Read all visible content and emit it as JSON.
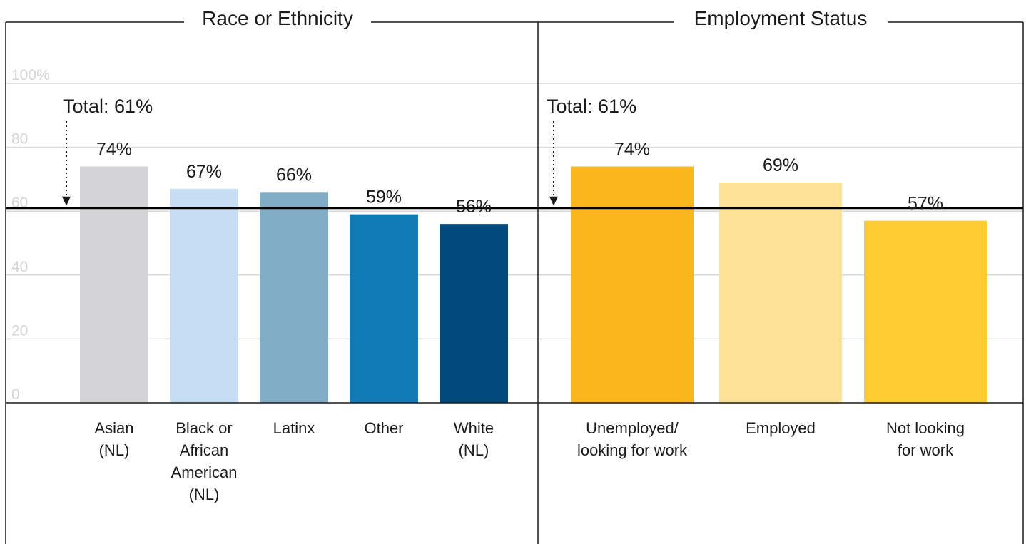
{
  "chart_data": [
    {
      "type": "bar",
      "title": "Race or Ethnicity",
      "categories": [
        [
          "Asian",
          "(NL)"
        ],
        [
          "Black or",
          "African",
          "American",
          "(NL)"
        ],
        [
          "Latinx"
        ],
        [
          "Other"
        ],
        [
          "White",
          "(NL)"
        ]
      ],
      "values": [
        74,
        67,
        66,
        59,
        56
      ],
      "value_labels": [
        "74%",
        "67%",
        "66%",
        "59%",
        "56%"
      ],
      "colors": [
        "#d4d4d6",
        "#c6ddf3",
        "#80acc5",
        "#117bb8",
        "#024a7c"
      ],
      "reference_line": {
        "value": 61,
        "label": "Total: 61%"
      },
      "ylim": [
        0,
        100
      ],
      "yticks": [
        "0",
        "20",
        "40",
        "60",
        "80",
        "100%"
      ],
      "ytick_values": [
        0,
        20,
        40,
        60,
        80,
        100
      ],
      "grid": true
    },
    {
      "type": "bar",
      "title": "Employment Status",
      "categories": [
        [
          "Unemployed/",
          "looking for work"
        ],
        [
          "Employed"
        ],
        [
          "Not looking",
          "for work"
        ]
      ],
      "values": [
        74,
        69,
        57
      ],
      "value_labels": [
        "74%",
        "69%",
        "57%"
      ],
      "colors": [
        "#fbb61e",
        "#fde197",
        "#fecb30"
      ],
      "reference_line": {
        "value": 61,
        "label": "Total: 61%"
      },
      "ylim": [
        0,
        100
      ],
      "grid": true
    }
  ]
}
